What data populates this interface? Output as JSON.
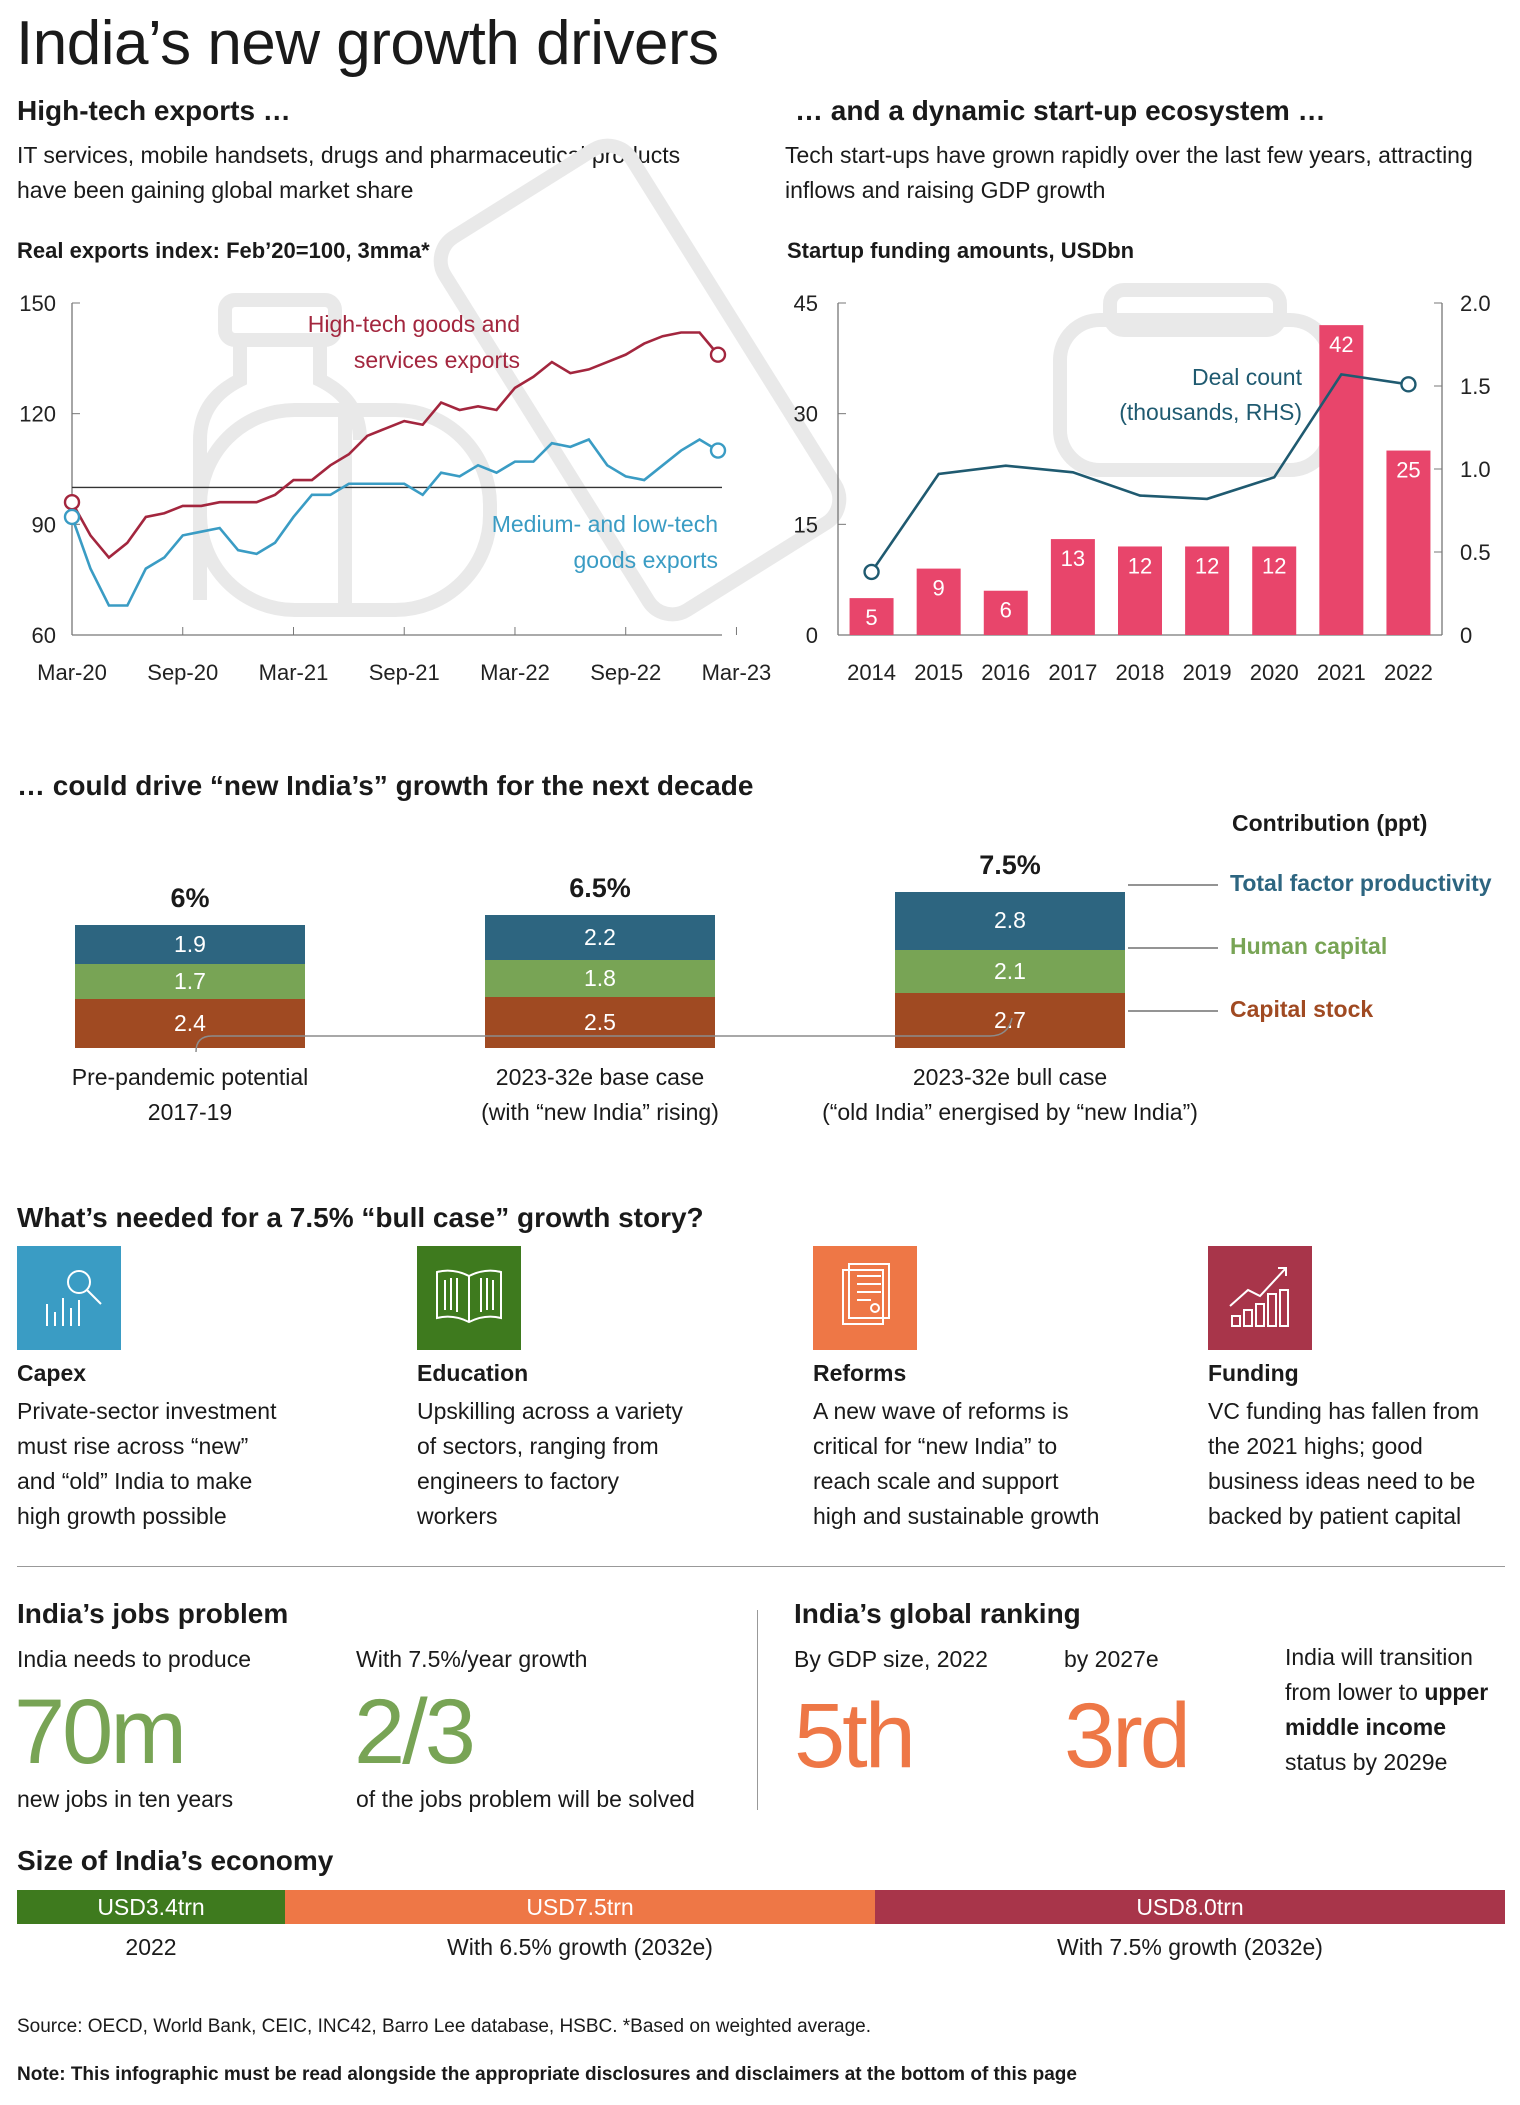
{
  "title": "India’s new growth drivers",
  "left_panel": {
    "heading": "High-tech exports …",
    "description": "IT services, mobile handsets, drugs and pharmaceutical products have been gaining global market share",
    "chart_title": "Real exports index: Feb’20=100, 3mma*"
  },
  "right_panel": {
    "heading": "… and a dynamic start-up ecosystem …",
    "description": "Tech start-ups have grown rapidly over the last few years, attracting inflows and raising GDP growth",
    "chart_title": "Startup funding amounts, USDbn"
  },
  "chart_data": [
    {
      "type": "line",
      "title": "Real exports index: Feb’20=100, 3mma*",
      "x_tick_labels": [
        "Mar-20",
        "Sep-20",
        "Mar-21",
        "Sep-21",
        "Mar-22",
        "Sep-22",
        "Mar-23"
      ],
      "y_ticks": [
        60,
        90,
        120,
        150
      ],
      "ylim": [
        60,
        150
      ],
      "reference_line": 100,
      "series": [
        {
          "name": "High-tech goods and services exports",
          "label_lines": [
            "High-tech goods and",
            "services exports"
          ],
          "color": "#a3263e",
          "values": [
            96,
            87,
            81,
            85,
            92,
            93,
            95,
            95,
            96,
            96,
            96,
            98,
            102,
            102,
            106,
            109,
            114,
            116,
            118,
            117,
            123,
            121,
            122,
            121,
            127,
            130,
            134,
            131,
            132,
            134,
            136,
            139,
            141,
            142,
            142,
            136
          ]
        },
        {
          "name": "Medium- and low-tech goods exports",
          "label_lines": [
            "Medium- and low-tech",
            "goods exports"
          ],
          "color": "#3a9cc4",
          "values": [
            92,
            78,
            68,
            68,
            78,
            81,
            87,
            88,
            89,
            83,
            82,
            85,
            92,
            98,
            98,
            101,
            101,
            101,
            101,
            98,
            104,
            103,
            106,
            104,
            107,
            107,
            112,
            111,
            113,
            106,
            103,
            102,
            106,
            110,
            113,
            110
          ]
        }
      ]
    },
    {
      "type": "bar",
      "title": "Startup funding amounts, USDbn",
      "categories": [
        "2014",
        "2015",
        "2016",
        "2017",
        "2018",
        "2019",
        "2020",
        "2021",
        "2022"
      ],
      "values": [
        5,
        9,
        6,
        13,
        12,
        12,
        12,
        42,
        25
      ],
      "bar_color": "#e8456b",
      "y_ticks": [
        0,
        15,
        30,
        45
      ],
      "ylim": [
        0,
        45
      ],
      "y2_ticks": [
        "0",
        "0.5",
        "1.0",
        "1.5",
        "2.0"
      ],
      "y2lim": [
        0,
        2.0
      ],
      "line_series": {
        "name": "Deal count (thousands, RHS)",
        "label_lines": [
          "Deal count",
          "(thousands, RHS)"
        ],
        "color": "#1f5a70",
        "values": [
          0.38,
          0.97,
          1.02,
          0.98,
          0.84,
          0.82,
          0.95,
          1.57,
          1.51
        ]
      }
    },
    {
      "type": "bar",
      "stacked": true,
      "title": "Contribution (ppt)",
      "categories": [
        "Pre-pandemic potential 2017-19",
        "2023-32e base case (with “new India” rising)",
        "2023-32e bull case (“old India” energised by “new India”)"
      ],
      "totals": [
        "6%",
        "6.5%",
        "7.5%"
      ],
      "series": [
        {
          "name": "Capital stock",
          "color": "#a04a22",
          "values": [
            2.4,
            2.5,
            2.7
          ]
        },
        {
          "name": "Human capital",
          "color": "#78a455",
          "values": [
            1.7,
            1.8,
            2.1
          ]
        },
        {
          "name": "Total factor productivity",
          "color": "#2d6580",
          "values": [
            1.9,
            2.2,
            2.8
          ]
        }
      ]
    }
  ],
  "middle": {
    "heading": "… could drive “new India’s” growth for the next decade",
    "contribution_title": "Contribution (ppt)",
    "scenarios": [
      {
        "total": "6%",
        "tfp": "1.9",
        "human": "1.7",
        "capital": "2.4",
        "label1": "Pre-pandemic potential",
        "label2": "2017-19"
      },
      {
        "total": "6.5%",
        "tfp": "2.2",
        "human": "1.8",
        "capital": "2.5",
        "label1": "2023-32e base case",
        "label2": "(with “new India” rising)"
      },
      {
        "total": "7.5%",
        "tfp": "2.8",
        "human": "2.1",
        "capital": "2.7",
        "label1": "2023-32e bull case",
        "label2": "(“old India” energised by “new India”)"
      }
    ],
    "legend": {
      "tfp": "Total factor productivity",
      "human": "Human capital",
      "capital": "Capital stock"
    }
  },
  "needed": {
    "heading": "What’s needed for a 7.5% “bull case” growth story?",
    "items": [
      {
        "title": "Capex",
        "icon": "magnifier-chart-icon",
        "color": "#3a9cc4",
        "lines": [
          "Private-sector investment",
          "must rise across “new”",
          "and “old” India to make",
          "high growth possible"
        ]
      },
      {
        "title": "Education",
        "icon": "open-book-icon",
        "color": "#3e7a1e",
        "lines": [
          "Upskilling across a variety",
          "of sectors, ranging from",
          "engineers to factory",
          "workers"
        ]
      },
      {
        "title": "Reforms",
        "icon": "document-icon",
        "color": "#ee7746",
        "lines": [
          "A new wave of reforms is",
          "critical for “new India” to",
          "reach scale and support",
          "high and sustainable growth"
        ]
      },
      {
        "title": "Funding",
        "icon": "growth-chart-icon",
        "color": "#a8354a",
        "lines": [
          "VC funding has fallen from",
          "the 2021 highs; good",
          "business ideas need to be",
          "backed by patient capital"
        ]
      }
    ]
  },
  "jobs": {
    "heading": "India’s jobs problem",
    "stat1": {
      "label_top": "India needs to produce",
      "value": "70m",
      "label_bottom": "new jobs in ten years"
    },
    "stat2": {
      "label_top": "With 7.5%/year growth",
      "value": "2/3",
      "label_bottom": "of the jobs problem will be solved"
    }
  },
  "ranking": {
    "heading": "India’s global ranking",
    "stat1": {
      "label": "By GDP size, 2022",
      "value": "5th"
    },
    "stat2": {
      "label": "by 2027e",
      "value": "3rd"
    },
    "note_line1": "India will transition",
    "note_line2_pre": "from lower to ",
    "note_line2_bold": "upper",
    "note_line3": "middle income",
    "note_line4": "status by 2029e"
  },
  "economy": {
    "heading": "Size of India’s economy",
    "segments": [
      {
        "value": "USD3.4trn",
        "label": "2022",
        "color": "#3e7a1e"
      },
      {
        "value": "USD7.5trn",
        "label": "With 6.5% growth (2032e)",
        "color": "#ee7746"
      },
      {
        "value": "USD8.0trn",
        "label": "With 7.5% growth (2032e)",
        "color": "#a8354a"
      }
    ]
  },
  "source": "Source: OECD, World Bank, CEIC, INC42, Barro Lee database, HSBC. *Based on weighted average.",
  "note": "Note: This infographic must be read alongside the appropriate disclosures and disclaimers at the bottom of this page"
}
